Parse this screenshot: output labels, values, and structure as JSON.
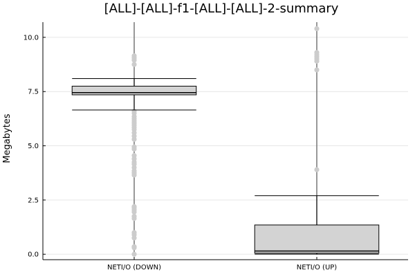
{
  "chart_data": {
    "type": "box",
    "title": "[ALL]-[ALL]-f1-[ALL]-[ALL]-2-summary",
    "xlabel": "",
    "ylabel": "Megabytes",
    "ylim": [
      -0.25,
      10.7
    ],
    "yticks": [
      0.0,
      2.5,
      5.0,
      7.5,
      10.0
    ],
    "ytick_labels": [
      "0.0",
      "2.5",
      "5.0",
      "7.5",
      "10.0"
    ],
    "grid": true,
    "legend": "none",
    "colors": {
      "box_fill": "#d3d3d3",
      "outlier": "#cccccc",
      "stroke": "#000000",
      "whisker_line": "#777777"
    },
    "categories": [
      "NETI/O (DOWN)",
      "NETI/O (UP)"
    ],
    "boxes": [
      {
        "category": "NETI/O (DOWN)",
        "whisker_low": 6.65,
        "q1": 7.35,
        "median": 7.45,
        "q3": 7.75,
        "whisker_high": 8.1,
        "range_min": 0.0,
        "range_max": 10.7,
        "outliers": [
          0.0,
          0.3,
          0.35,
          0.75,
          0.9,
          1.0,
          1.65,
          1.75,
          1.95,
          2.05,
          2.15,
          2.2,
          3.65,
          3.75,
          3.85,
          4.0,
          4.15,
          4.25,
          4.4,
          4.55,
          4.85,
          4.95,
          5.3,
          5.45,
          5.6,
          5.75,
          5.85,
          5.95,
          6.05,
          6.15,
          6.25,
          6.35,
          6.5,
          6.6,
          8.75,
          8.95,
          9.05,
          9.15
        ]
      },
      {
        "category": "NETI/O (UP)",
        "whisker_low": 0.0,
        "q1": 0.05,
        "median": 0.15,
        "q3": 1.35,
        "whisker_high": 2.7,
        "range_min": 0.0,
        "range_max": 10.7,
        "outliers": [
          3.9,
          8.5,
          8.9,
          9.0,
          9.1,
          9.2,
          9.3,
          10.4
        ]
      }
    ]
  }
}
